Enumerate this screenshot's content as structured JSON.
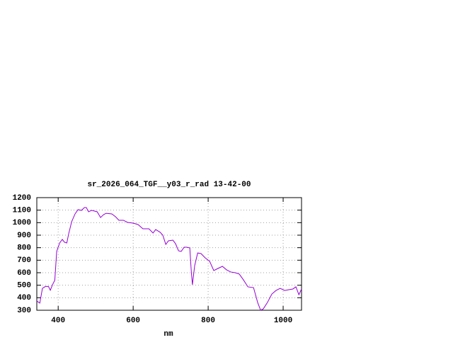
{
  "chart_data": {
    "type": "line",
    "title": "sr_2026_064_TGF__y03_r_rad 13-42-00",
    "x_label": "nm",
    "x": [
      343,
      351,
      358,
      366,
      374,
      379,
      385,
      391,
      396,
      404,
      411,
      417,
      423,
      428,
      436,
      445,
      453,
      462,
      470,
      475,
      481,
      489,
      496,
      504,
      513,
      521,
      528,
      543,
      553,
      562,
      574,
      585,
      600,
      613,
      626,
      642,
      653,
      660,
      672,
      679,
      687,
      694,
      706,
      713,
      721,
      728,
      736,
      743,
      751,
      755,
      758,
      764,
      772,
      781,
      792,
      804,
      815,
      826,
      838,
      849,
      860,
      872,
      883,
      894,
      906,
      921,
      932,
      940,
      947,
      958,
      970,
      981,
      992,
      1004,
      1015,
      1026,
      1034,
      1042,
      1049
    ],
    "series": [
      {
        "color": "#9400d3",
        "values": [
          374,
          357,
          475,
          490,
          490,
          460,
          505,
          540,
          770,
          838,
          866,
          843,
          838,
          911,
          1008,
          1070,
          1104,
          1098,
          1121,
          1121,
          1087,
          1098,
          1093,
          1087,
          1041,
          1064,
          1075,
          1070,
          1047,
          1019,
          1019,
          1002,
          996,
          985,
          951,
          951,
          917,
          945,
          923,
          900,
          826,
          855,
          860,
          832,
          775,
          770,
          804,
          804,
          798,
          611,
          504,
          656,
          758,
          753,
          719,
          691,
          617,
          634,
          651,
          623,
          606,
          600,
          589,
          543,
          487,
          481,
          362,
          300,
          311,
          362,
          430,
          458,
          475,
          458,
          464,
          470,
          487,
          424,
          470
        ]
      }
    ],
    "xlim": [
      343,
      1049
    ],
    "ylim": [
      300,
      1200
    ],
    "xticks": [
      400,
      600,
      800,
      1000
    ],
    "yticks": [
      300,
      400,
      500,
      600,
      700,
      800,
      900,
      1000,
      1100,
      1200
    ],
    "grid": true
  }
}
